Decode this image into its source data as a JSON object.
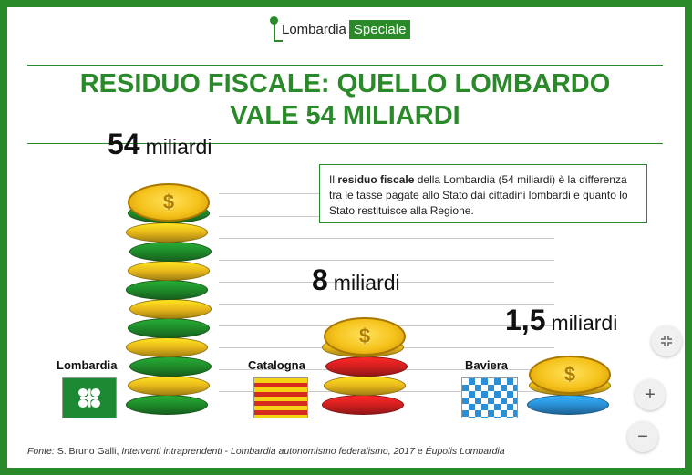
{
  "header": {
    "logo_text": "Lombardia",
    "logo_tag": "Speciale",
    "title_line1": "RESIDUO FISCALE: QUELLO LOMBARDO",
    "title_line2": "VALE 54 MILIARDI"
  },
  "callout": {
    "before": "Il ",
    "bold": "residuo fiscale",
    "after": " della Lombardia (54 miliardi) è la differenza tra le tasse pagate allo Stato dai cittadini lombardi e quanto lo Stato restituisce alla Regione."
  },
  "chart_data": {
    "type": "bar",
    "categories": [
      "Lombardia",
      "Catalogna",
      "Baviera"
    ],
    "values": [
      54,
      8,
      1.5
    ],
    "value_labels": [
      "54",
      "8",
      "1,5"
    ],
    "unit": "miliardi",
    "colors": [
      "#1f8a2a",
      "#d21f1f",
      "#2a8fd6"
    ]
  },
  "source": {
    "prefix": "Fonte: ",
    "author": "S. Bruno Galli, ",
    "work": "Interventi intraprendenti",
    "sep": " - ",
    "work2": "Lombardia autonomismo federalismo, 2017",
    "and": " e ",
    "work3": "Éupolis Lombardia"
  },
  "controls": {
    "collapse_icon": "collapse-icon",
    "zoom_in_label": "+",
    "zoom_out_label": "−"
  }
}
